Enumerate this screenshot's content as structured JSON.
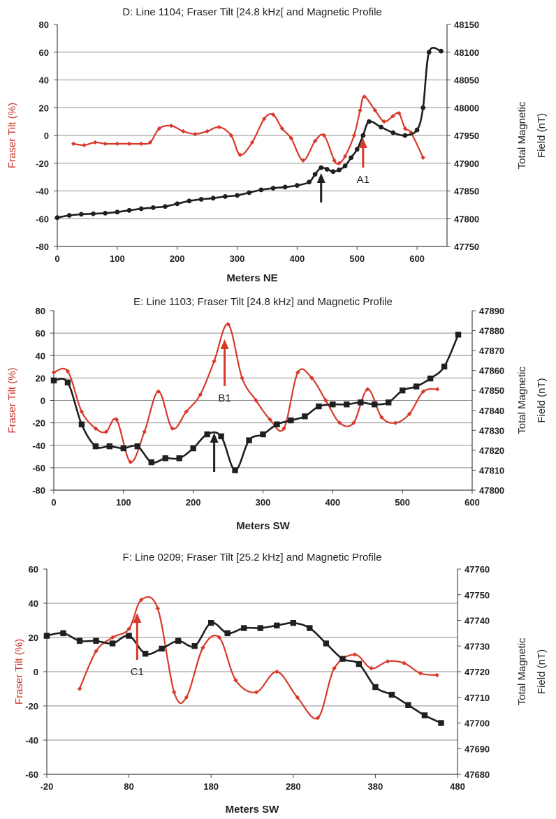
{
  "colors": {
    "tilt": "#d8392b",
    "mag": "#1f1f1f",
    "grid": "#8c8c8c",
    "axis": "#444444"
  },
  "chart_data": [
    {
      "id": "D",
      "type": "line",
      "title": "D: Line 1104; Fraser Tilt [24.8 kHz[ and Magnetic Profile",
      "xlabel": "Meters NE",
      "ylabel_left": "Fraser Tilt (%)",
      "ylabel_right": [
        "Total Magnetic",
        "Field (nT)"
      ],
      "xlim": [
        0,
        650
      ],
      "xticks": [
        0,
        100,
        200,
        300,
        400,
        500,
        600
      ],
      "ylim_left": [
        -80,
        80
      ],
      "yticks_left": [
        -80,
        -60,
        -40,
        -20,
        0,
        20,
        40,
        60,
        80
      ],
      "ylim_right": [
        47750,
        48150
      ],
      "yticks_right": [
        47750,
        47800,
        47850,
        47900,
        47950,
        48000,
        48050,
        48100,
        48150
      ],
      "grid_left": [
        -60,
        -40,
        -20,
        0,
        20,
        40,
        60
      ],
      "marker_tilt": "diamond",
      "marker_mag": "circle",
      "series": [
        {
          "name": "Fraser Tilt",
          "axis": "left",
          "x": [
            27,
            45,
            63,
            80,
            100,
            120,
            140,
            155,
            170,
            190,
            210,
            230,
            250,
            270,
            290,
            305,
            325,
            345,
            360,
            375,
            390,
            410,
            430,
            445,
            462,
            470,
            480,
            495,
            505,
            512,
            530,
            545,
            560,
            570,
            580,
            590,
            610
          ],
          "values": [
            -6,
            -7,
            -5,
            -6,
            -6,
            -6,
            -6,
            -5,
            5,
            7,
            3,
            1,
            3,
            6,
            0,
            -14,
            -5,
            12,
            15,
            5,
            -2,
            -18,
            -4,
            0,
            -18,
            -20,
            -15,
            0,
            18,
            28,
            18,
            10,
            14,
            16,
            5,
            2,
            -16
          ]
        },
        {
          "name": "Total Magnetic Field",
          "axis": "right",
          "x": [
            0,
            20,
            40,
            60,
            80,
            100,
            120,
            140,
            160,
            180,
            200,
            220,
            240,
            260,
            280,
            300,
            320,
            340,
            360,
            380,
            400,
            420,
            430,
            440,
            450,
            460,
            470,
            480,
            490,
            500,
            510,
            520,
            540,
            560,
            580,
            600,
            610,
            620,
            640
          ],
          "values": [
            47802,
            47806,
            47808,
            47809,
            47810,
            47812,
            47815,
            47818,
            47820,
            47822,
            47827,
            47832,
            47835,
            47837,
            47840,
            47842,
            47847,
            47852,
            47855,
            47857,
            47860,
            47866,
            47880,
            47892,
            47889,
            47885,
            47888,
            47895,
            47910,
            47925,
            47950,
            47975,
            47965,
            47955,
            47950,
            47960,
            48000,
            48100,
            48102
          ]
        }
      ],
      "annotations": [
        {
          "text": "A1",
          "x": 510,
          "color": "tilt",
          "arrow": "red"
        },
        {
          "text": "",
          "x": 440,
          "color": "mag",
          "arrow": "black"
        }
      ]
    },
    {
      "id": "E",
      "type": "line",
      "title": "E: Line 1103; Fraser Tilt [24.8 kHz] and Magnetic Profile",
      "xlabel": "Meters SW",
      "ylabel_left": "Fraser Tilt (%)",
      "ylabel_right": [
        "Total Magnetic",
        "Field (nT)"
      ],
      "xlim": [
        0,
        600
      ],
      "xticks": [
        0,
        100,
        200,
        300,
        400,
        500,
        600
      ],
      "ylim_left": [
        -80,
        80
      ],
      "yticks_left": [
        -80,
        -60,
        -40,
        -20,
        0,
        20,
        40,
        60,
        80
      ],
      "ylim_right": [
        47800,
        47890
      ],
      "yticks_right": [
        47800,
        47810,
        47820,
        47830,
        47840,
        47850,
        47860,
        47870,
        47880,
        47890
      ],
      "grid_left": [
        -60,
        -40,
        -20,
        0,
        20,
        40,
        60
      ],
      "marker_tilt": "diamond",
      "marker_mag": "square",
      "series": [
        {
          "name": "Fraser Tilt",
          "axis": "left",
          "x": [
            0,
            20,
            40,
            60,
            75,
            90,
            110,
            130,
            150,
            170,
            190,
            210,
            230,
            250,
            270,
            290,
            310,
            330,
            350,
            370,
            390,
            410,
            430,
            450,
            470,
            490,
            510,
            530,
            550
          ],
          "values": [
            25,
            26,
            -10,
            -25,
            -28,
            -17,
            -55,
            -28,
            8,
            -25,
            -10,
            5,
            35,
            68,
            20,
            0,
            -17,
            -25,
            25,
            20,
            0,
            -20,
            -20,
            10,
            -15,
            -20,
            -12,
            8,
            10
          ]
        },
        {
          "name": "Total Magnetic Field",
          "axis": "right",
          "x": [
            0,
            20,
            40,
            60,
            80,
            100,
            120,
            140,
            160,
            180,
            200,
            220,
            240,
            260,
            280,
            300,
            320,
            340,
            360,
            380,
            400,
            420,
            440,
            460,
            480,
            500,
            520,
            540,
            560,
            580
          ],
          "values": [
            47855,
            47854,
            47833,
            47822,
            47822,
            47821,
            47822,
            47814,
            47816,
            47816,
            47821,
            47828,
            47827,
            47810,
            47825,
            47828,
            47833,
            47835,
            47837,
            47842,
            47843,
            47843,
            47844,
            47843,
            47844,
            47850,
            47852,
            47856,
            47862,
            47878
          ]
        }
      ],
      "annotations": [
        {
          "text": "B1",
          "x": 245,
          "color": "tilt",
          "arrow": "red"
        },
        {
          "text": "",
          "x": 230,
          "color": "mag",
          "arrow": "black"
        }
      ]
    },
    {
      "id": "F",
      "type": "line",
      "title": "F: Line 0209; Fraser Tilt [25.2 kHz] and Magnetic Profile",
      "xlabel": "Meters SW",
      "ylabel_left": "Fraser Tilt (%)",
      "ylabel_right": [
        "Total Magnetic",
        "Field (nT)"
      ],
      "xlim": [
        -20,
        480
      ],
      "xticks": [
        -20,
        80,
        180,
        280,
        380,
        480
      ],
      "ylim_left": [
        -60,
        60
      ],
      "yticks_left": [
        -60,
        -40,
        -20,
        0,
        20,
        40,
        60
      ],
      "ylim_right": [
        47680,
        47760
      ],
      "yticks_right": [
        47680,
        47690,
        47700,
        47710,
        47720,
        47730,
        47740,
        47750,
        47760
      ],
      "grid_left": [
        -40,
        -20,
        0,
        20,
        40
      ],
      "marker_tilt": "diamond",
      "marker_mag": "square",
      "series": [
        {
          "name": "Fraser Tilt",
          "axis": "left",
          "x": [
            20,
            40,
            60,
            80,
            95,
            115,
            135,
            150,
            170,
            190,
            210,
            235,
            260,
            285,
            310,
            330,
            355,
            375,
            395,
            415,
            435,
            455
          ],
          "values": [
            -10,
            12,
            20,
            25,
            42,
            37,
            -12,
            -15,
            14,
            20,
            -5,
            -12,
            0,
            -15,
            -27,
            2,
            10,
            2,
            6,
            5,
            -1,
            -2
          ]
        },
        {
          "name": "Total Magnetic Field",
          "axis": "right",
          "x": [
            -20,
            0,
            20,
            40,
            60,
            80,
            100,
            120,
            140,
            160,
            180,
            200,
            220,
            240,
            260,
            280,
            300,
            320,
            340,
            360,
            380,
            400,
            420,
            440,
            460
          ],
          "values": [
            47734,
            47735,
            47732,
            47732,
            47731,
            47734,
            47727,
            47729,
            47732,
            47730,
            47739,
            47735,
            47737,
            47737,
            47738,
            47739,
            47737,
            47731,
            47725,
            47723,
            47714,
            47711,
            47707,
            47703,
            47700
          ]
        }
      ],
      "annotations": [
        {
          "text": "C1",
          "x": 90,
          "color": "tilt",
          "arrow": "red"
        }
      ]
    }
  ]
}
